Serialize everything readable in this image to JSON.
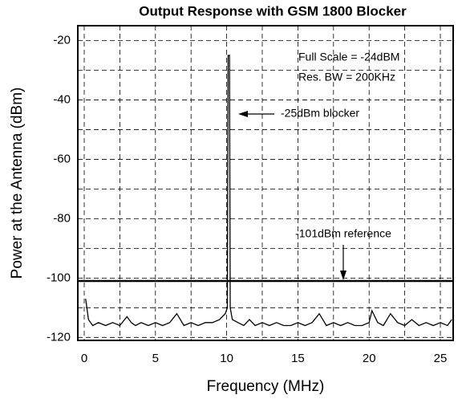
{
  "chart_data": {
    "type": "line",
    "title": "Output Response with GSM 1800 Blocker",
    "xlabel": "Frequency (MHz)",
    "ylabel": "Power at the Antenna (dBm)",
    "annotations": [
      "Full Scale = -24dBM",
      "Res. BW = 200KHz",
      "-25dBm blocker",
      "-101dBm reference"
    ],
    "reference_level": -101,
    "x": [
      0.1,
      0.3,
      0.6,
      1,
      1.5,
      2,
      2.5,
      3,
      3.3,
      3.6,
      4,
      4.5,
      5,
      5.5,
      6,
      6.5,
      7,
      7.5,
      8,
      8.5,
      9,
      9.5,
      9.9,
      10.05,
      10.1,
      10.2,
      10.25,
      10.4,
      10.8,
      11.2,
      11.6,
      12,
      12.5,
      13,
      13.5,
      14,
      14.5,
      15,
      15.5,
      16,
      16.5,
      17,
      17.5,
      18,
      18.5,
      19,
      19.5,
      20,
      20.2,
      20.6,
      21,
      21.5,
      22,
      22.5,
      23,
      23.5,
      24,
      24.5,
      25,
      25.5,
      25.8
    ],
    "series": [
      {
        "color": "#000000",
        "values": [
          -107,
          -114,
          -116,
          -115,
          -116,
          -115,
          -116,
          -113,
          -115,
          -116,
          -115,
          -116,
          -115,
          -116,
          -115,
          -112,
          -116,
          -115,
          -116,
          -115,
          -115,
          -114,
          -112,
          -110,
          -25,
          -25,
          -110,
          -114,
          -115,
          -116,
          -114,
          -116,
          -115,
          -116,
          -115,
          -116,
          -116,
          -115,
          -116,
          -115,
          -112,
          -116,
          -115,
          -116,
          -115,
          -116,
          -116,
          -115,
          -111,
          -115,
          -116,
          -112,
          -115,
          -116,
          -114,
          -116,
          -115,
          -116,
          -115,
          -116,
          -114
        ]
      }
    ],
    "xlim": [
      -0.45,
      25.9
    ],
    "xticks": [
      0,
      5,
      10,
      15,
      20,
      25
    ],
    "ylim": [
      -121,
      -15
    ],
    "yticks": [
      -20,
      -40,
      -60,
      -80,
      -100,
      -120
    ],
    "grid": true
  }
}
